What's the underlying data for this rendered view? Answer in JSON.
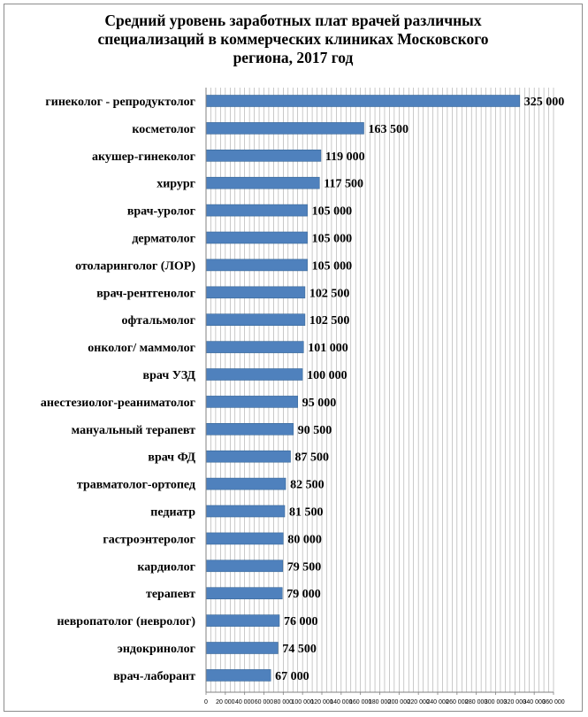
{
  "chart_data": {
    "type": "bar",
    "orientation": "horizontal",
    "title": "Средний уровень заработных плат врачей различных специализаций в коммерческих клиниках Московского региона, 2017 год",
    "title_lines": [
      "Средний уровень заработных плат врачей различных",
      "специализаций в коммерческих клиниках Московского",
      "региона, 2017 год"
    ],
    "categories": [
      "гинеколог - репродуктолог",
      "косметолог",
      "акушер-гинеколог",
      "хирург",
      "врач-уролог",
      "дерматолог",
      "отоларинголог (ЛОР)",
      "врач-рентгенолог",
      "офтальмолог",
      "онколог/ маммолог",
      "врач УЗД",
      "анестезиолог-реаниматолог",
      "мануальный терапевт",
      "врач ФД",
      "травматолог-ортопед",
      "педиатр",
      "гастроэнтеролог",
      "кардиолог",
      "терапевт",
      "невропатолог (невролог)",
      "эндокринолог",
      "врач-лаборант"
    ],
    "values": [
      325000,
      163500,
      119000,
      117500,
      105000,
      105000,
      105000,
      102500,
      102500,
      101000,
      100000,
      95000,
      90500,
      87500,
      82500,
      81500,
      80000,
      79500,
      79000,
      76000,
      74500,
      67000
    ],
    "value_labels": [
      "325 000",
      "163 500",
      "119 000",
      "117 500",
      "105 000",
      "105 000",
      "105 000",
      "102 500",
      "102 500",
      "101 000",
      "100 000",
      "95 000",
      "90 500",
      "87 500",
      "82 500",
      "81 500",
      "80 000",
      "79 500",
      "79 000",
      "76 000",
      "74 500",
      "67 000"
    ],
    "x_ticks": [
      0,
      20000,
      40000,
      60000,
      80000,
      100000,
      120000,
      140000,
      160000,
      180000,
      200000,
      220000,
      240000,
      260000,
      280000,
      300000,
      320000,
      340000,
      360000
    ],
    "x_tick_labels": [
      "0",
      "20 000",
      "40 000",
      "60 000",
      "80 000",
      "100 000",
      "120 000",
      "140 000",
      "160 000",
      "180 000",
      "200 000",
      "220 000",
      "240 000",
      "260 000",
      "280 000",
      "300 000",
      "320 000",
      "340 000",
      "360 000"
    ],
    "xlim": [
      0,
      360000
    ],
    "minor_grid_step": 5000,
    "grid": true,
    "legend": "none",
    "xlabel": "",
    "ylabel": "",
    "colors": {
      "bar": "#4f81bd",
      "bar_edge": "#3a6898",
      "grid": "#a6a6a6"
    }
  }
}
